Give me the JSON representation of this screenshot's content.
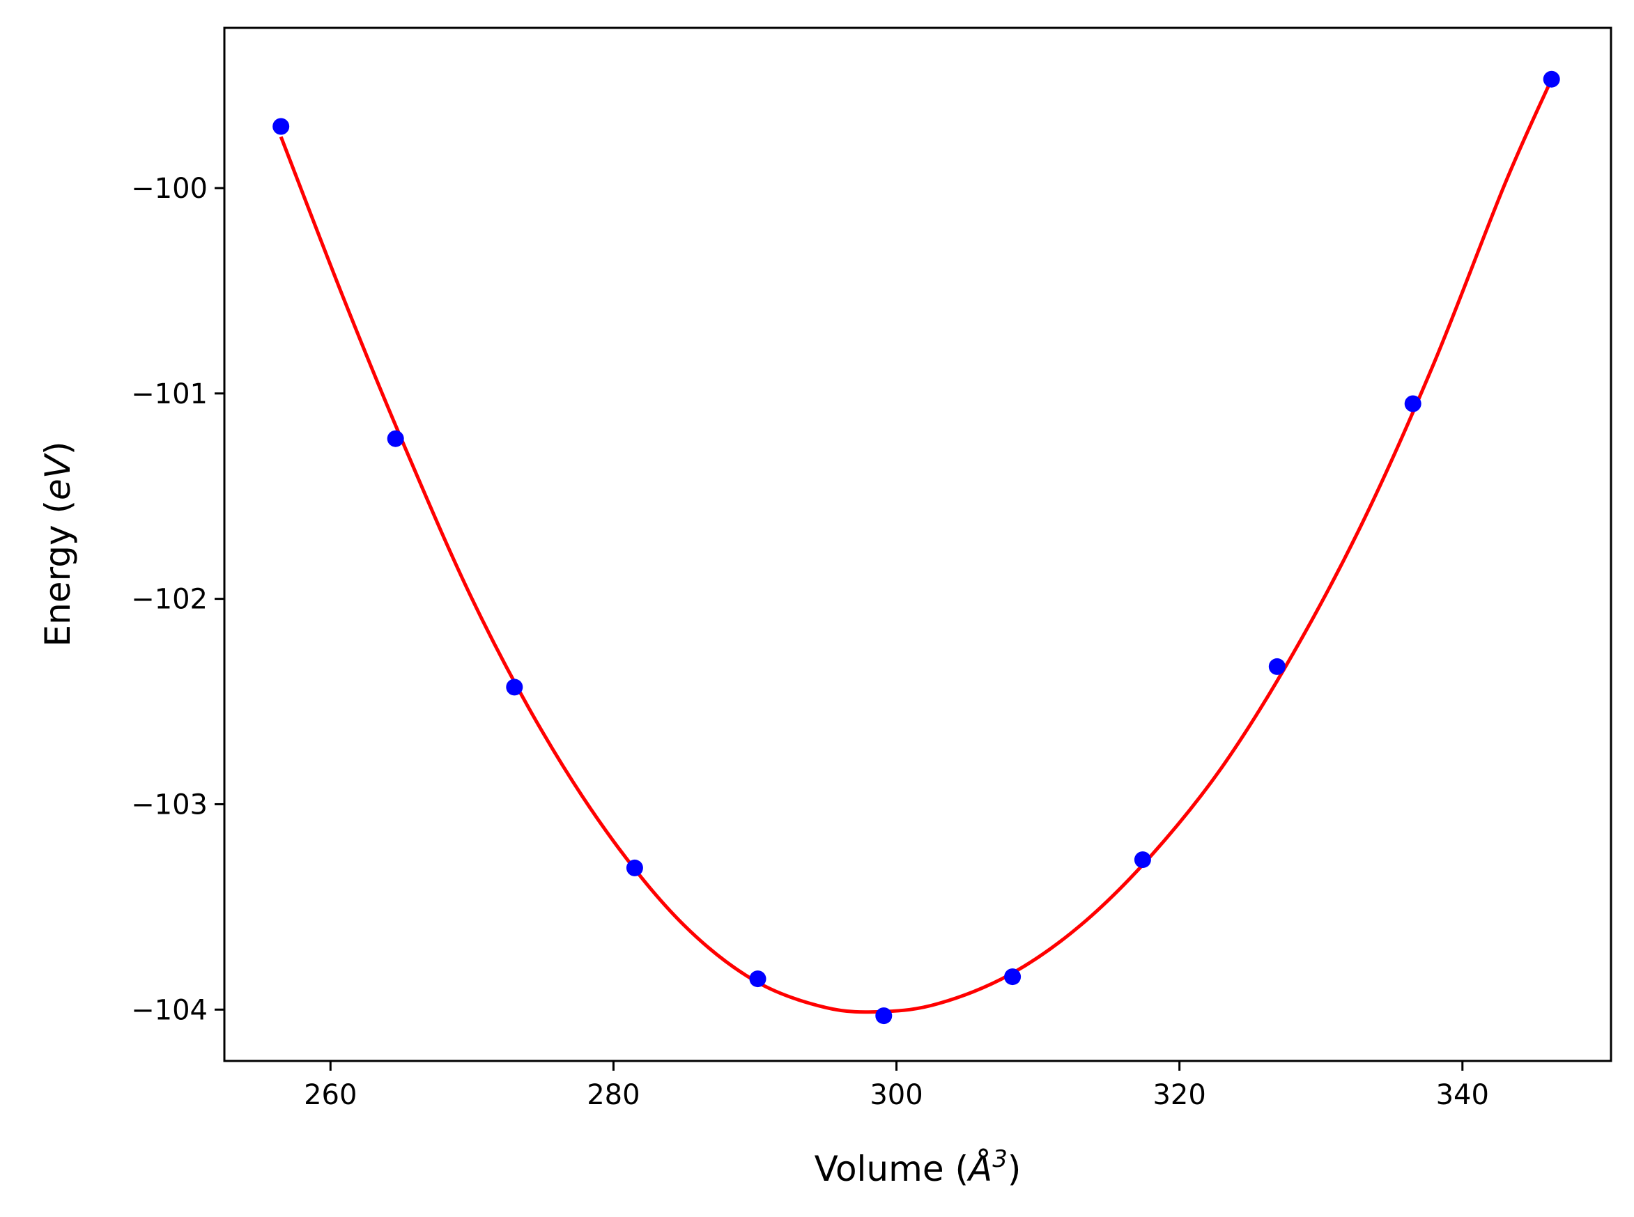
{
  "chart_data": {
    "type": "scatter",
    "xlabel": "Volume (Å³)",
    "xlabel_parts": {
      "prefix": "Volume (",
      "symbol": "Å",
      "power": "3",
      "suffix": ")"
    },
    "ylabel": "Energy (eV)",
    "ylabel_parts": {
      "prefix": "Energy (",
      "unit": "eV",
      "suffix": ")"
    },
    "xlim": [
      252.5,
      350.5
    ],
    "ylim": [
      -104.25,
      -99.22
    ],
    "xticks": [
      260,
      280,
      300,
      320,
      340
    ],
    "xtick_labels": [
      "260",
      "280",
      "300",
      "320",
      "340"
    ],
    "yticks": [
      -100,
      -101,
      -102,
      -103,
      -104
    ],
    "ytick_labels": [
      "−100",
      "−101",
      "−102",
      "−103",
      "−104"
    ],
    "grid": false,
    "series": [
      {
        "kind": "points",
        "color": "#0000ff",
        "x": [
          256.5,
          264.6,
          273.0,
          281.5,
          290.2,
          299.1,
          308.2,
          317.4,
          326.9,
          336.5,
          346.3
        ],
        "y": [
          -99.7,
          -101.22,
          -102.43,
          -103.31,
          -103.85,
          -104.03,
          -103.84,
          -103.27,
          -102.33,
          -101.05,
          -99.47
        ]
      },
      {
        "kind": "fit-curve",
        "color": "#ff0000",
        "x": [
          256.5,
          261,
          265,
          270,
          275,
          280,
          285,
          290,
          295,
          299,
          303,
          308,
          313,
          318,
          323,
          328,
          333,
          338,
          343,
          346.3
        ],
        "y": [
          -99.75,
          -100.55,
          -101.22,
          -102.0,
          -102.65,
          -103.18,
          -103.59,
          -103.86,
          -103.99,
          -104.01,
          -103.97,
          -103.83,
          -103.59,
          -103.25,
          -102.82,
          -102.27,
          -101.62,
          -100.85,
          -99.98,
          -99.47
        ]
      }
    ]
  }
}
